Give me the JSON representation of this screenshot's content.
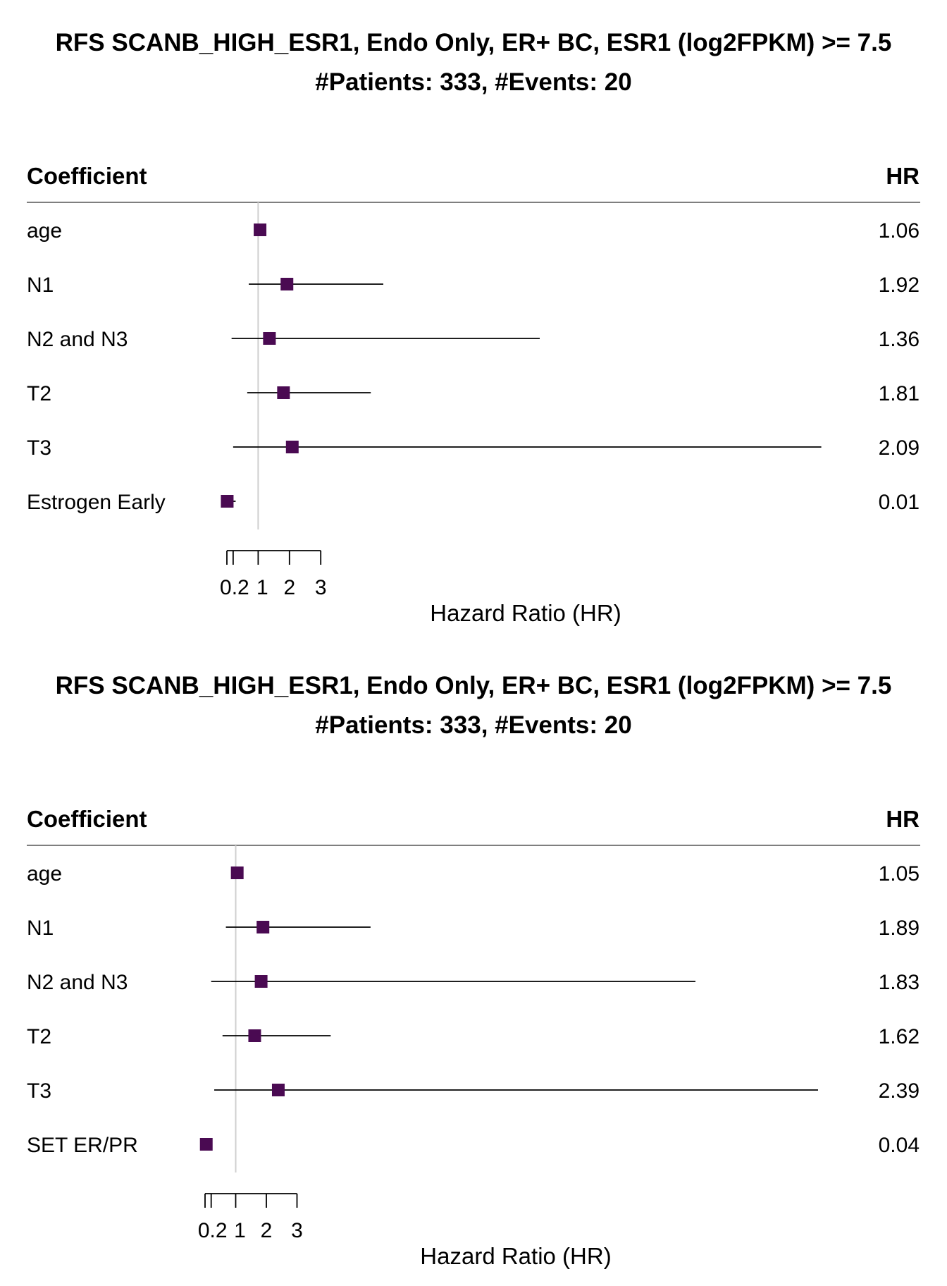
{
  "chart_data": [
    {
      "type": "forest",
      "title": "RFS SCANB_HIGH_ESR1, Endo Only, ER+ BC, ESR1 (log2FPKM) >= 7.5",
      "subtitle": "#Patients: 333, #Events: 20",
      "column_headers": {
        "left": "Coefficient",
        "right": "HR"
      },
      "xlabel": "Hazard Ratio (HR)",
      "xticks": [
        "0.2",
        "1",
        "2",
        "3"
      ],
      "xtick_values": [
        0.2,
        1,
        2,
        3
      ],
      "xlim": [
        0.0,
        20.0
      ],
      "reference_line": 1,
      "marker_color": "#4a0a52",
      "rows": [
        {
          "label": "age",
          "hr": 1.06,
          "hr_label": "1.06",
          "ci": [
            1.02,
            1.1
          ]
        },
        {
          "label": "N1",
          "hr": 1.92,
          "hr_label": "1.92",
          "ci": [
            0.7,
            5.0
          ]
        },
        {
          "label": "N2 and N3",
          "hr": 1.36,
          "hr_label": "1.36",
          "ci": [
            0.15,
            10.0
          ]
        },
        {
          "label": "T2",
          "hr": 1.81,
          "hr_label": "1.81",
          "ci": [
            0.65,
            4.6
          ]
        },
        {
          "label": "T3",
          "hr": 2.09,
          "hr_label": "2.09",
          "ci": [
            0.2,
            19.0
          ]
        },
        {
          "label": "Estrogen Early",
          "hr": 0.01,
          "hr_label": "0.01",
          "ci": [
            0.0,
            0.28
          ]
        }
      ]
    },
    {
      "type": "forest",
      "title": "RFS SCANB_HIGH_ESR1, Endo Only, ER+ BC, ESR1 (log2FPKM) >= 7.5",
      "subtitle": "#Patients: 333, #Events: 20",
      "column_headers": {
        "left": "Coefficient",
        "right": "HR"
      },
      "xlabel": "Hazard Ratio (HR)",
      "xticks": [
        "0.2",
        "1",
        "2",
        "3"
      ],
      "xtick_values": [
        0.2,
        1,
        2,
        3
      ],
      "xlim": [
        0.0,
        20.0
      ],
      "reference_line": 1,
      "marker_color": "#4a0a52",
      "rows": [
        {
          "label": "age",
          "hr": 1.05,
          "hr_label": "1.05",
          "ci": [
            1.01,
            1.09
          ]
        },
        {
          "label": "N1",
          "hr": 1.89,
          "hr_label": "1.89",
          "ci": [
            0.68,
            5.4
          ]
        },
        {
          "label": "N2 and N3",
          "hr": 1.83,
          "hr_label": "1.83",
          "ci": [
            0.2,
            16.0
          ]
        },
        {
          "label": "T2",
          "hr": 1.62,
          "hr_label": "1.62",
          "ci": [
            0.57,
            4.1
          ]
        },
        {
          "label": "T3",
          "hr": 2.39,
          "hr_label": "2.39",
          "ci": [
            0.3,
            20.0
          ]
        },
        {
          "label": "SET ER/PR",
          "hr": 0.04,
          "hr_label": "0.04",
          "ci": [
            0.0,
            0.22
          ]
        }
      ]
    }
  ]
}
